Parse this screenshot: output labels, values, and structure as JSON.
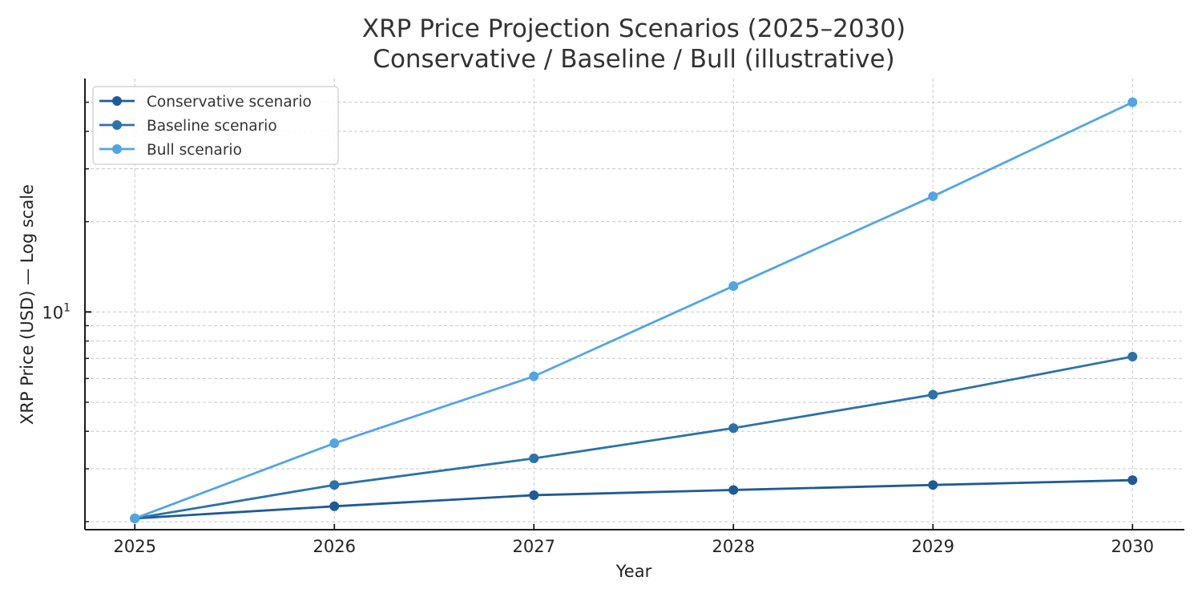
{
  "chart_data": {
    "type": "line",
    "title": "XRP Price Projection Scenarios (2025–2030)",
    "subtitle": "Conservative / Baseline / Bull (illustrative)",
    "xlabel": "Year",
    "ylabel": "XRP Price (USD) — Log scale",
    "yscale": "log",
    "x": [
      2025,
      2026,
      2027,
      2028,
      2029,
      2030
    ],
    "x_tick_labels": [
      "2025",
      "2026",
      "2027",
      "2028",
      "2029",
      "2030"
    ],
    "xlim": [
      2024.75,
      2030.26
    ],
    "ylim": [
      1.88,
      60
    ],
    "y_major_ticks": [
      {
        "value": 10,
        "base": "10",
        "exponent": "1"
      }
    ],
    "y_minor_ticks": [
      2,
      3,
      4,
      5,
      6,
      7,
      8,
      9,
      20,
      30,
      40,
      50
    ],
    "grid": true,
    "grid_style": "dashed",
    "legend_position": "top-left",
    "series": [
      {
        "name": "Conservative scenario",
        "color": "#1f5a96",
        "values": [
          2.05,
          2.25,
          2.45,
          2.55,
          2.65,
          2.75
        ]
      },
      {
        "name": "Baseline scenario",
        "color": "#2b72a8",
        "values": [
          2.05,
          2.65,
          3.25,
          4.1,
          5.3,
          7.1
        ]
      },
      {
        "name": "Bull scenario",
        "color": "#52a5e4",
        "values": [
          2.05,
          3.65,
          6.1,
          12.2,
          24.3,
          50.0
        ]
      }
    ]
  }
}
